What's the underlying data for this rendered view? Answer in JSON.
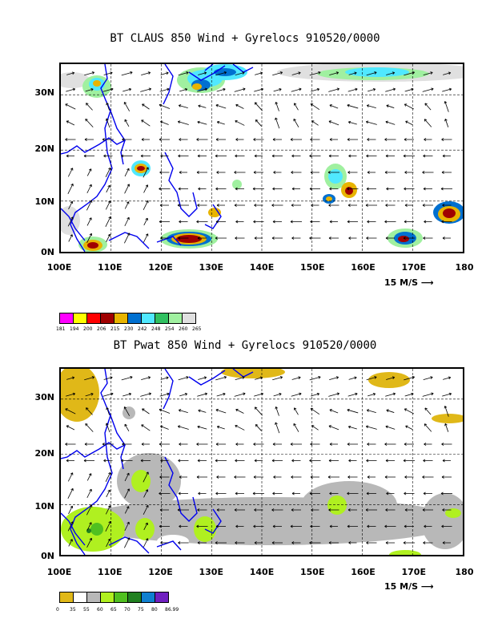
{
  "top": {
    "title": "BT CLAUS 850 Wind + Gyrelocs 910520/0000",
    "y_labels": [
      "30N",
      "20N",
      "10N",
      "0N"
    ],
    "x_labels": [
      "100E",
      "110E",
      "120E",
      "130E",
      "140E",
      "150E",
      "160E",
      "170E",
      "180"
    ],
    "ref_vector": "15 M/S",
    "colorbar": {
      "colors": [
        "#ff00ff",
        "#ffff00",
        "#ff0000",
        "#a00000",
        "#e8b400",
        "#0070d0",
        "#50e8ff",
        "#30c060",
        "#a0f0a0",
        "#e0e0e0"
      ],
      "labels": [
        "181",
        "194",
        "200",
        "206",
        "215",
        "230",
        "242",
        "248",
        "254",
        "260",
        "265"
      ]
    }
  },
  "bottom": {
    "title": "BT Pwat 850 Wind + Gyrelocs 910520/0000",
    "y_labels": [
      "30N",
      "20N",
      "10N",
      "0N"
    ],
    "x_labels": [
      "100E",
      "110E",
      "120E",
      "130E",
      "140E",
      "150E",
      "160E",
      "170E",
      "180"
    ],
    "ref_vector": "15 M/S",
    "colorbar": {
      "colors": [
        "#e0b818",
        "#ffffff",
        "#b8b8b8",
        "#b0f020",
        "#50c020",
        "#208020",
        "#1080d0",
        "#7020c0"
      ],
      "labels": [
        "0",
        "35",
        "55",
        "60",
        "65",
        "70",
        "75",
        "80",
        "86.99"
      ]
    }
  }
}
